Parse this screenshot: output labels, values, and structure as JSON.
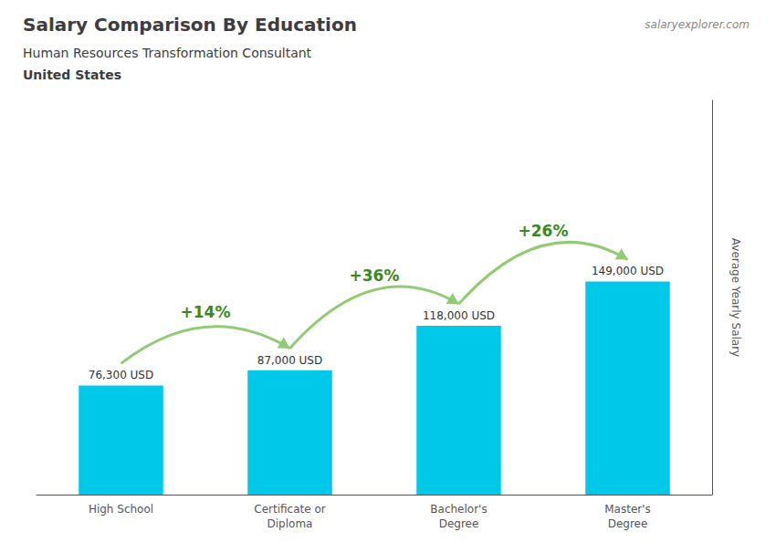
{
  "chart_data": {
    "type": "bar",
    "title": "Salary Comparison By Education",
    "subtitle": "Human Resources Transformation Consultant",
    "location": "United States",
    "watermark": [
      "salary",
      "explorer",
      ".com"
    ],
    "ylabel": "Average Yearly Salary",
    "categories": [
      "High School",
      "Certificate or\nDiploma",
      "Bachelor's\nDegree",
      "Master's\nDegree"
    ],
    "values": [
      76300,
      87000,
      118000,
      149000
    ],
    "value_labels": [
      "76,300 USD",
      "87,000 USD",
      "118,000 USD",
      "149,000 USD"
    ],
    "data_labels": true,
    "annotations": [
      "+14%",
      "+36%",
      "+26%"
    ],
    "color": "#00c8e8",
    "ylim": [
      0,
      275650
    ],
    "tick_labels": "x",
    "grid": false
  }
}
